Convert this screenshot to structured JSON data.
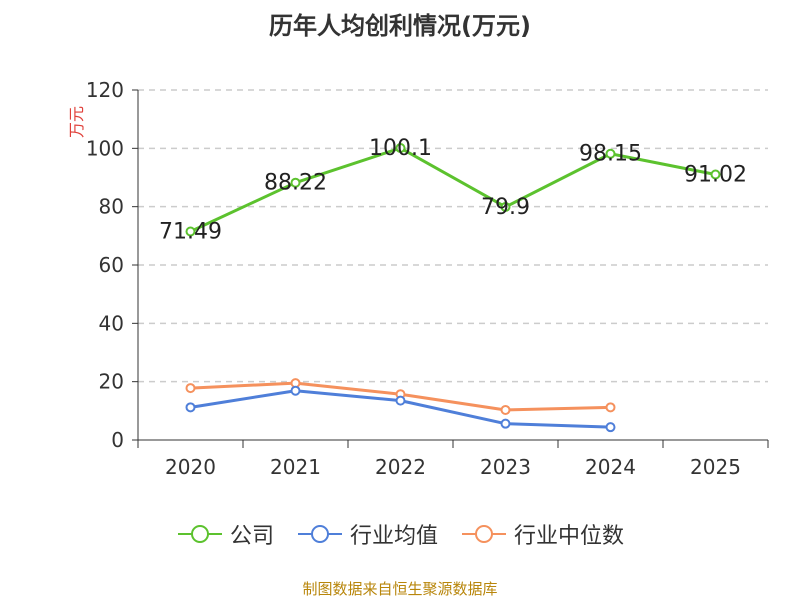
{
  "chart_data": {
    "type": "line",
    "title": "历年人均创利情况(万元)",
    "ylabel": "万元",
    "xlabel": "",
    "ylim": [
      0,
      120
    ],
    "yticks": [
      0,
      20,
      40,
      60,
      80,
      100,
      120
    ],
    "categories": [
      "2020",
      "2021",
      "2022",
      "2023",
      "2024",
      "2025"
    ],
    "grid": "horizontal-dashed",
    "legend_position": "bottom",
    "series": [
      {
        "name": "公司",
        "color": "#5cc22e",
        "values": [
          71.49,
          88.22,
          100.1,
          79.9,
          98.15,
          91.02
        ],
        "labels": [
          "71.49",
          "88.22",
          "100.1",
          "79.9",
          "98.15",
          "91.02"
        ]
      },
      {
        "name": "行业均值",
        "color": "#4f7fd9",
        "values": [
          11.2,
          16.9,
          13.5,
          5.6,
          4.4,
          null
        ]
      },
      {
        "name": "行业中位数",
        "color": "#f5915d",
        "values": [
          17.8,
          19.5,
          15.7,
          10.3,
          11.2,
          null
        ]
      }
    ]
  },
  "source": "制图数据来自恒生聚源数据库"
}
